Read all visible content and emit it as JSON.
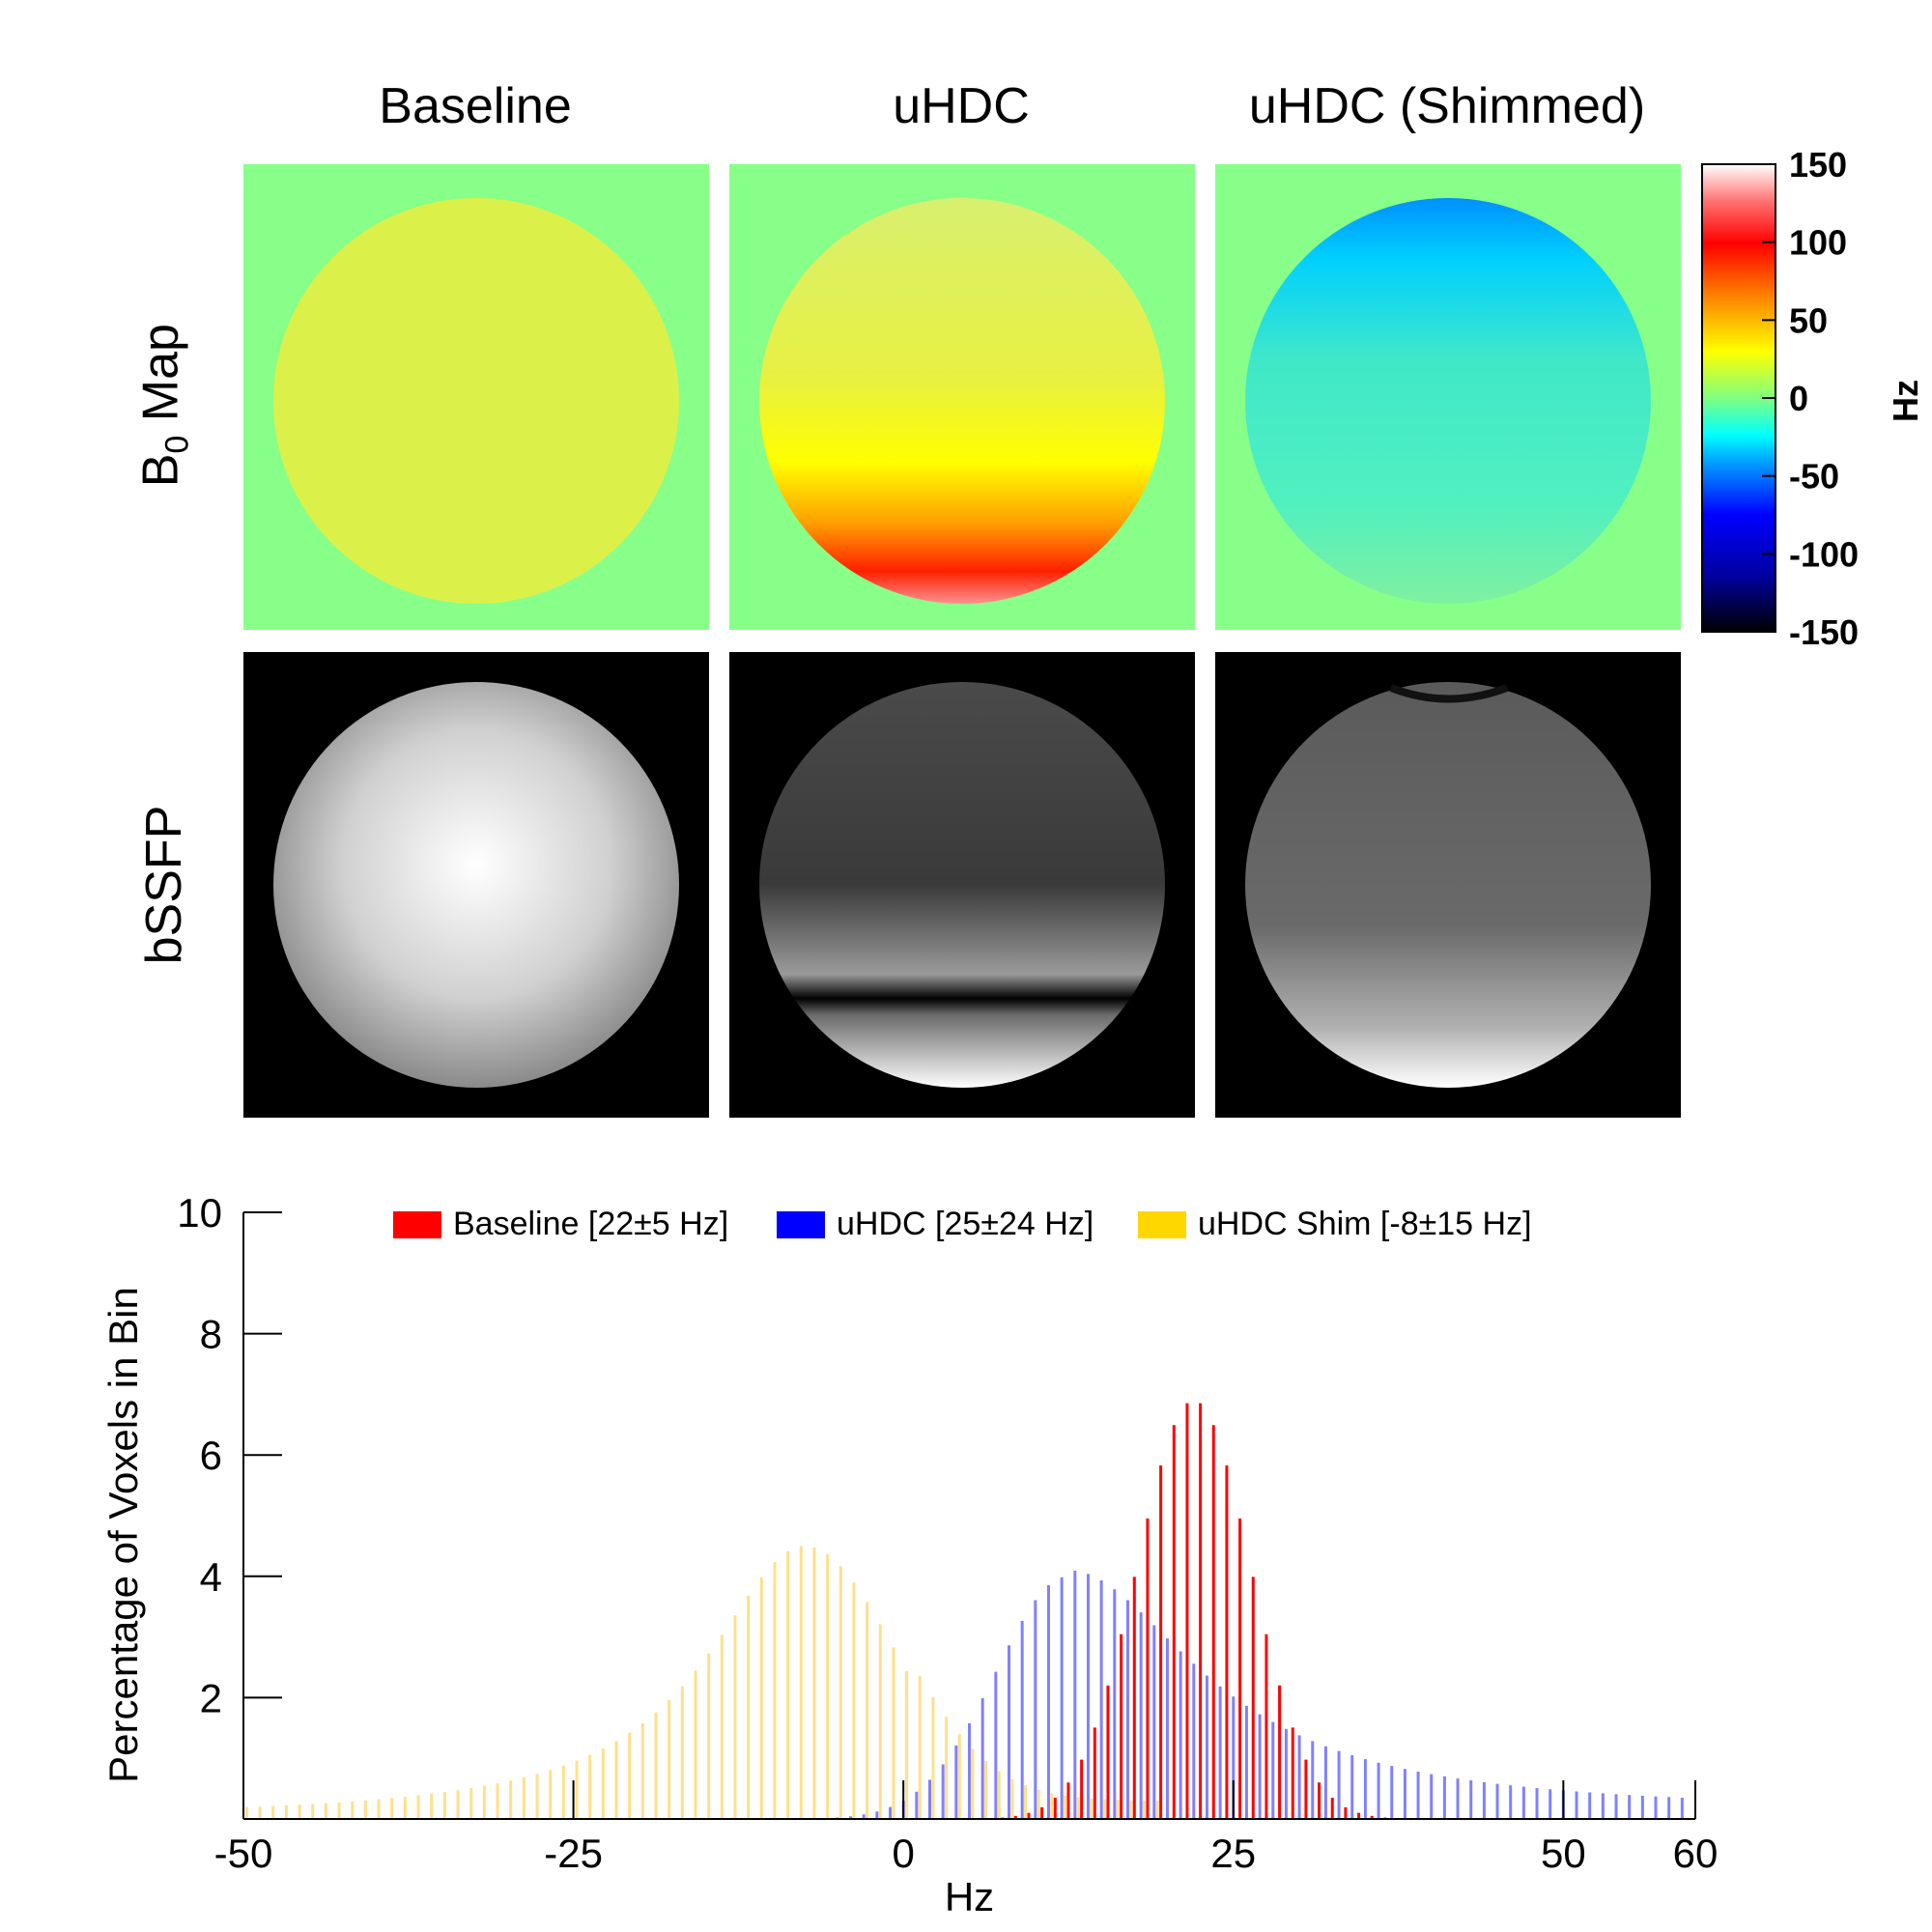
{
  "columns": [
    "Baseline",
    "uHDC",
    "uHDC (Shimmed)"
  ],
  "rows": {
    "b0_label_main": "B",
    "b0_label_sub": "0",
    "b0_label_rest": " Map",
    "bssfp_label": "bSSFP"
  },
  "colorbar": {
    "label": "Hz",
    "ticks": [
      "150",
      "100",
      "50",
      "0",
      "-50",
      "-100",
      "-150"
    ],
    "range": [
      -150,
      150
    ]
  },
  "chart_data": {
    "type": "bar",
    "xlabel": "Hz",
    "ylabel": "Percentage of Voxels in Bin",
    "xlim": [
      -50,
      60
    ],
    "ylim": [
      0,
      10
    ],
    "xticks": [
      "-50",
      "-25",
      "0",
      "25",
      "50",
      "60"
    ],
    "yticks": [
      "2",
      "4",
      "6",
      "8",
      "10"
    ],
    "legend_position": "top",
    "series": [
      {
        "name": "Baseline [22±5 Hz]",
        "color": "#ff0000",
        "mean": 22,
        "std": 5,
        "peak": 6.9,
        "start": 5,
        "end": 40
      },
      {
        "name": "uHDC [25±24 Hz]",
        "color": "#8080ff",
        "legend_color": "#0000ff",
        "mean": 25,
        "std": 24,
        "peak": 4.0,
        "start": -10,
        "end": 59
      },
      {
        "name": "uHDC Shim [-8±15 Hz]",
        "color": "#ffe08a",
        "legend_color": "#ffd700",
        "mean": -8,
        "std": 15,
        "peak": 4.5,
        "start": -50,
        "end": 20
      }
    ]
  }
}
